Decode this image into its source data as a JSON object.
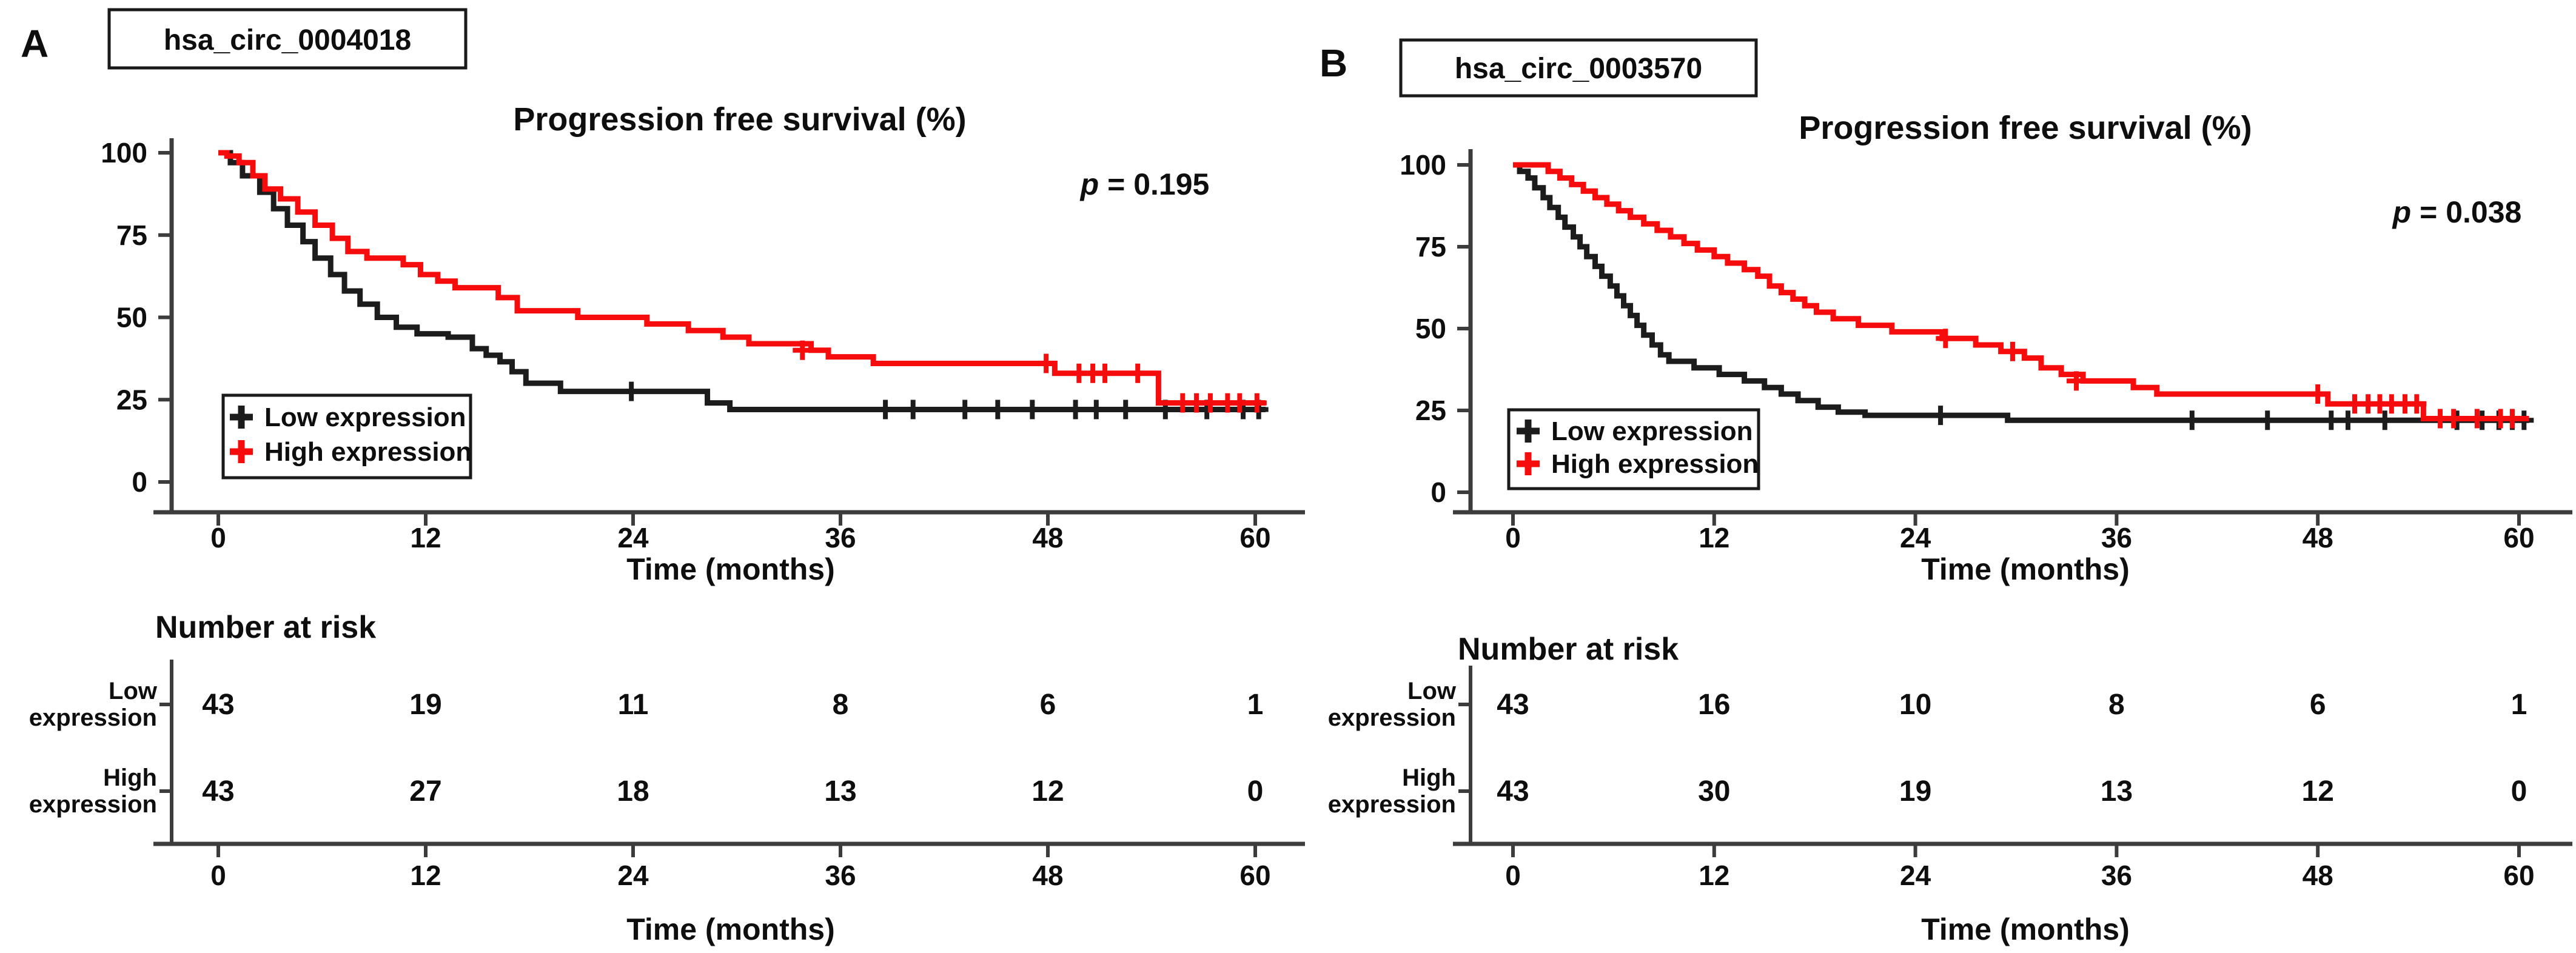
{
  "figure": {
    "panels": [
      {
        "panel_label": "A",
        "gene": "hsa_circ_0004018",
        "title": "Progression free survival (%)",
        "p_label": "p",
        "p_rest": " = 0.195",
        "xlabel": "Time (months)",
        "risk_title": "Number at risk",
        "legend_items": [
          {
            "label": "Low expression",
            "color": "#1c1c1c"
          },
          {
            "label": "High expression",
            "color": "#f60c0c"
          }
        ],
        "risk_row_labels": [
          [
            "Low",
            "expression"
          ],
          [
            "High",
            "expression"
          ]
        ]
      },
      {
        "panel_label": "B",
        "gene": "hsa_circ_0003570",
        "title": "Progression free survival (%)",
        "p_label": "p",
        "p_rest": " = 0.038",
        "xlabel": "Time (months)",
        "risk_title": "Number at risk",
        "legend_items": [
          {
            "label": "Low expression",
            "color": "#1c1c1c"
          },
          {
            "label": "High expression",
            "color": "#f60c0c"
          }
        ],
        "risk_row_labels": [
          [
            "Low",
            "expression"
          ],
          [
            "High",
            "expression"
          ]
        ]
      }
    ],
    "colors": {
      "low_expression": "#1c1c1c",
      "high_expression": "#f60c0c",
      "axis": "#3c3c3c",
      "text": "#0e0e0e",
      "background": "#ffffff"
    }
  },
  "chart_data": [
    {
      "type": "line",
      "subtype": "kaplan-meier",
      "panel": "A",
      "gene": "hsa_circ_0004018",
      "title": "Progression free survival (%)",
      "xlabel": "Time (months)",
      "ylabel": "Progression free survival (%)",
      "p_value": 0.195,
      "xlim": [
        0,
        62
      ],
      "ylim": [
        0,
        100
      ],
      "xticks": [
        0,
        12,
        24,
        36,
        48,
        60
      ],
      "yticks": [
        100,
        75,
        50,
        25,
        0
      ],
      "legend_position": "lower left",
      "series": [
        {
          "name": "Low expression",
          "color": "#1c1c1c",
          "steps": [
            [
              0,
              100
            ],
            [
              0.7,
              97
            ],
            [
              1.4,
              93
            ],
            [
              2.4,
              88
            ],
            [
              3.2,
              83
            ],
            [
              4,
              78
            ],
            [
              4.9,
              73
            ],
            [
              5.6,
              68
            ],
            [
              6.5,
              63
            ],
            [
              7.3,
              58
            ],
            [
              8.2,
              54
            ],
            [
              9.2,
              50
            ],
            [
              10.3,
              47
            ],
            [
              11.5,
              45
            ],
            [
              13.3,
              44
            ],
            [
              14.7,
              40.5
            ],
            [
              15.5,
              38.5
            ],
            [
              16.3,
              36.5
            ],
            [
              17,
              33.5
            ],
            [
              17.8,
              30
            ],
            [
              19.8,
              27.5
            ],
            [
              28.3,
              24
            ],
            [
              29.6,
              22
            ],
            [
              60.6,
              22
            ]
          ],
          "censor_marks": [
            [
              23.9,
              27.5
            ],
            [
              38.6,
              22
            ],
            [
              40.2,
              22
            ],
            [
              43.2,
              22
            ],
            [
              45.1,
              22
            ],
            [
              47.1,
              22
            ],
            [
              49.6,
              22
            ],
            [
              50.8,
              22
            ],
            [
              52.5,
              22
            ],
            [
              54.8,
              22
            ],
            [
              57.2,
              22
            ],
            [
              59.3,
              22
            ],
            [
              60.2,
              22
            ]
          ]
        },
        {
          "name": "High expression",
          "color": "#f60c0c",
          "steps": [
            [
              0,
              100
            ],
            [
              0.5,
              99
            ],
            [
              1.2,
              97
            ],
            [
              2,
              93
            ],
            [
              2.7,
              89
            ],
            [
              3.6,
              86
            ],
            [
              4.6,
              82
            ],
            [
              5.6,
              78
            ],
            [
              6.6,
              74
            ],
            [
              7.5,
              70
            ],
            [
              8.6,
              68
            ],
            [
              10.7,
              66
            ],
            [
              11.7,
              63
            ],
            [
              12.7,
              61
            ],
            [
              13.7,
              59
            ],
            [
              16.2,
              56
            ],
            [
              17.3,
              52
            ],
            [
              20.8,
              50
            ],
            [
              24.8,
              48
            ],
            [
              27.2,
              46
            ],
            [
              29.2,
              44
            ],
            [
              30.7,
              42
            ],
            [
              34.3,
              40
            ],
            [
              35.3,
              38
            ],
            [
              37.9,
              36
            ],
            [
              48.4,
              33
            ],
            [
              54.4,
              24
            ],
            [
              60.6,
              24
            ]
          ],
          "censor_marks": [
            [
              33.8,
              40
            ],
            [
              47.9,
              36
            ],
            [
              49.8,
              33
            ],
            [
              50.6,
              33
            ],
            [
              51.3,
              33
            ],
            [
              53.2,
              33
            ],
            [
              55.8,
              24
            ],
            [
              56.6,
              24
            ],
            [
              57.4,
              24
            ],
            [
              58.4,
              24
            ],
            [
              59.1,
              24
            ],
            [
              60.1,
              24
            ]
          ]
        }
      ],
      "number_at_risk": {
        "times": [
          0,
          12,
          24,
          36,
          48,
          60
        ],
        "rows": [
          {
            "name": "Low expression",
            "counts": [
              43,
              19,
              11,
              8,
              6,
              1
            ]
          },
          {
            "name": "High expression",
            "counts": [
              43,
              27,
              18,
              13,
              12,
              0
            ]
          }
        ]
      }
    },
    {
      "type": "line",
      "subtype": "kaplan-meier",
      "panel": "B",
      "gene": "hsa_circ_0003570",
      "title": "Progression free survival (%)",
      "xlabel": "Time (months)",
      "ylabel": "Progression free survival (%)",
      "p_value": 0.038,
      "xlim": [
        0,
        62
      ],
      "ylim": [
        0,
        100
      ],
      "xticks": [
        0,
        12,
        24,
        36,
        48,
        60
      ],
      "yticks": [
        100,
        75,
        50,
        25,
        0
      ],
      "legend_position": "lower left",
      "series": [
        {
          "name": "Low expression",
          "color": "#1c1c1c",
          "steps": [
            [
              0,
              100
            ],
            [
              0.4,
              98
            ],
            [
              0.9,
              96
            ],
            [
              1.3,
              93
            ],
            [
              1.8,
              90
            ],
            [
              2.2,
              87
            ],
            [
              2.7,
              84
            ],
            [
              3.1,
              81
            ],
            [
              3.6,
              78
            ],
            [
              4,
              75
            ],
            [
              4.4,
              72
            ],
            [
              4.9,
              69
            ],
            [
              5.3,
              66
            ],
            [
              5.8,
              63
            ],
            [
              6.2,
              60
            ],
            [
              6.6,
              57
            ],
            [
              7,
              54
            ],
            [
              7.4,
              51
            ],
            [
              7.8,
              48
            ],
            [
              8.3,
              45
            ],
            [
              8.8,
              42
            ],
            [
              9.3,
              40
            ],
            [
              10.8,
              38
            ],
            [
              12.3,
              36
            ],
            [
              13.8,
              34
            ],
            [
              15,
              32
            ],
            [
              16,
              30
            ],
            [
              17,
              28
            ],
            [
              18.2,
              26
            ],
            [
              19.4,
              24.5
            ],
            [
              21,
              23.5
            ],
            [
              29.5,
              22
            ],
            [
              60.6,
              22
            ]
          ],
          "censor_marks": [
            [
              25.5,
              23.5
            ],
            [
              40.5,
              22
            ],
            [
              45,
              22
            ],
            [
              48.8,
              22
            ],
            [
              49.8,
              22
            ],
            [
              52,
              22
            ],
            [
              56.3,
              22
            ],
            [
              57.8,
              22
            ],
            [
              58.8,
              22
            ],
            [
              59.6,
              22
            ],
            [
              60.3,
              22
            ]
          ]
        },
        {
          "name": "High expression",
          "color": "#f60c0c",
          "steps": [
            [
              0,
              100
            ],
            [
              2.1,
              98
            ],
            [
              2.8,
              96
            ],
            [
              3.5,
              94
            ],
            [
              4.2,
              92
            ],
            [
              4.9,
              90
            ],
            [
              5.6,
              88
            ],
            [
              6.3,
              86
            ],
            [
              7,
              84
            ],
            [
              7.8,
              82
            ],
            [
              8.6,
              80
            ],
            [
              9.4,
              78
            ],
            [
              10.2,
              76
            ],
            [
              11,
              74
            ],
            [
              12,
              72
            ],
            [
              12.8,
              70
            ],
            [
              13.8,
              68
            ],
            [
              14.6,
              66
            ],
            [
              15.3,
              63
            ],
            [
              16,
              61
            ],
            [
              16.7,
              59
            ],
            [
              17.4,
              57
            ],
            [
              18.1,
              55
            ],
            [
              19.1,
              53
            ],
            [
              20.6,
              51
            ],
            [
              22.6,
              49
            ],
            [
              25.6,
              47
            ],
            [
              27.6,
              45
            ],
            [
              29.1,
              43
            ],
            [
              30.5,
              41
            ],
            [
              31.5,
              38
            ],
            [
              32.7,
              36
            ],
            [
              34,
              34
            ],
            [
              37,
              32
            ],
            [
              38.4,
              30
            ],
            [
              48.6,
              27
            ],
            [
              54.3,
              22.5
            ],
            [
              60.6,
              22.5
            ]
          ],
          "censor_marks": [
            [
              25.8,
              47
            ],
            [
              29.8,
              43
            ],
            [
              33.6,
              34
            ],
            [
              48,
              30
            ],
            [
              50.2,
              27
            ],
            [
              51,
              27
            ],
            [
              51.7,
              27
            ],
            [
              52.4,
              27
            ],
            [
              53.2,
              27
            ],
            [
              53.9,
              27
            ],
            [
              55.3,
              22.5
            ],
            [
              56.1,
              22.5
            ],
            [
              57.5,
              22.5
            ],
            [
              58.9,
              22.5
            ],
            [
              59.6,
              22.5
            ]
          ]
        }
      ],
      "number_at_risk": {
        "times": [
          0,
          12,
          24,
          36,
          48,
          60
        ],
        "rows": [
          {
            "name": "Low expression",
            "counts": [
              43,
              16,
              10,
              8,
              6,
              1
            ]
          },
          {
            "name": "High expression",
            "counts": [
              43,
              30,
              19,
              13,
              12,
              0
            ]
          }
        ]
      }
    }
  ]
}
